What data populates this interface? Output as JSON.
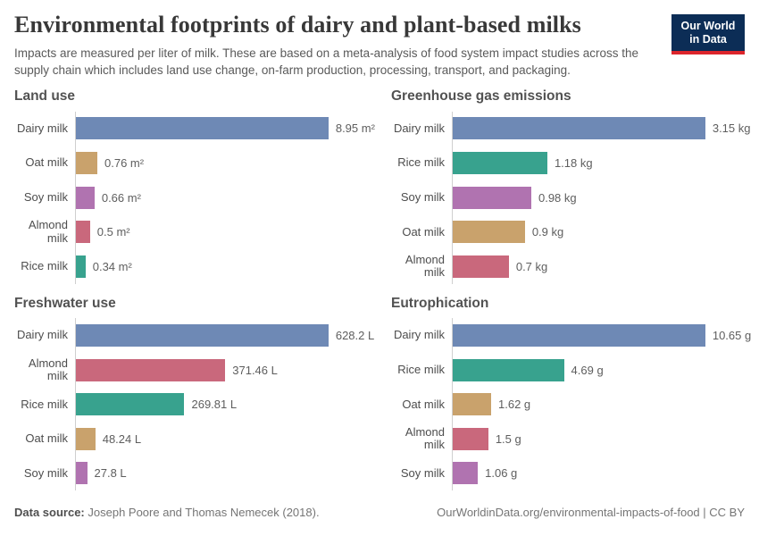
{
  "header": {
    "title": "Environmental footprints of dairy and plant-based milks",
    "subtitle": "Impacts are measured per liter of milk. These are based on a meta-analysis of food system impact studies across the supply chain which includes land use change, on-farm production, processing, transport, and packaging.",
    "logo": {
      "line1": "Our World",
      "line2": "in Data",
      "background": "#0c2d56",
      "accent": "#dc252c"
    }
  },
  "series_colors": {
    "Dairy milk": "#6e89b5",
    "Oat milk": "#c9a26c",
    "Soy milk": "#b073b0",
    "Almond milk": "#c9687c",
    "Rice milk": "#38a28e"
  },
  "chart_data": [
    {
      "type": "bar",
      "orientation": "horizontal",
      "title": "Land use",
      "unit": "m² per liter",
      "categories": [
        "Dairy milk",
        "Oat milk",
        "Soy milk",
        "Almond milk",
        "Rice milk"
      ],
      "values": [
        8.95,
        0.76,
        0.66,
        0.5,
        0.34
      ],
      "labels": [
        "8.95 m²",
        "0.76 m²",
        "0.66 m²",
        "0.5 m²",
        "0.34 m²"
      ],
      "xlim": [
        0,
        9.3
      ],
      "grid": false,
      "value_label_position": "bar-end"
    },
    {
      "type": "bar",
      "orientation": "horizontal",
      "title": "Greenhouse gas emissions",
      "unit": "kg per liter",
      "categories": [
        "Dairy milk",
        "Rice milk",
        "Soy milk",
        "Oat milk",
        "Almond milk"
      ],
      "values": [
        3.15,
        1.18,
        0.98,
        0.9,
        0.7
      ],
      "labels": [
        "3.15 kg",
        "1.18 kg",
        "0.98 kg",
        "0.9 kg",
        "0.7 kg"
      ],
      "xlim": [
        0,
        3.3
      ],
      "grid": false,
      "value_label_position": "bar-end"
    },
    {
      "type": "bar",
      "orientation": "horizontal",
      "title": "Freshwater use",
      "unit": "L per liter",
      "categories": [
        "Dairy milk",
        "Almond milk",
        "Rice milk",
        "Oat milk",
        "Soy milk"
      ],
      "values": [
        628.2,
        371.46,
        269.81,
        48.24,
        27.8
      ],
      "labels": [
        "628.2 L",
        "371.46 L",
        "269.81 L",
        "48.24 L",
        "27.8 L"
      ],
      "xlim": [
        0,
        655
      ],
      "grid": false,
      "value_label_position": "bar-end"
    },
    {
      "type": "bar",
      "orientation": "horizontal",
      "title": "Eutrophication",
      "unit": "g per liter",
      "categories": [
        "Dairy milk",
        "Rice milk",
        "Oat milk",
        "Almond milk",
        "Soy milk"
      ],
      "values": [
        10.65,
        4.69,
        1.62,
        1.5,
        1.06
      ],
      "labels": [
        "10.65 g",
        "4.69 g",
        "1.62 g",
        "1.5 g",
        "1.06 g"
      ],
      "xlim": [
        0,
        11.1
      ],
      "grid": false,
      "value_label_position": "bar-end"
    }
  ],
  "footer": {
    "source_label": "Data source:",
    "source_text": "Joseph Poore and Thomas Nemecek (2018).",
    "link_text": "OurWorldinData.org/environmental-impacts-of-food | CC BY"
  }
}
